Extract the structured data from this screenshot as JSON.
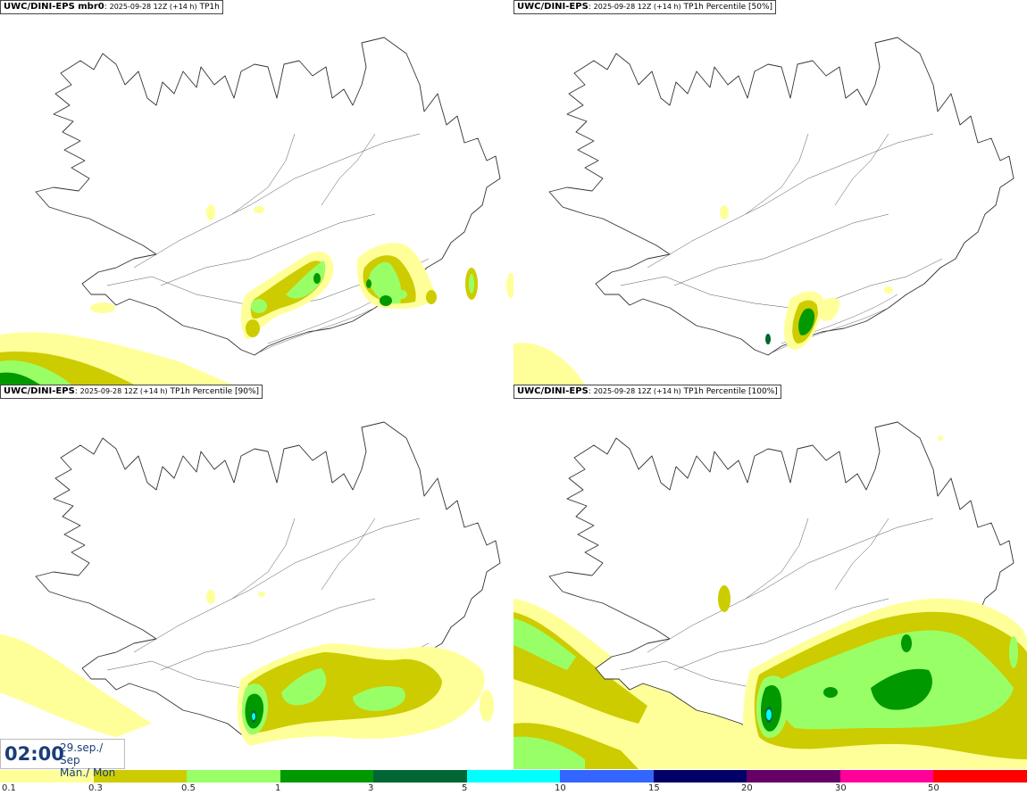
{
  "panels": [
    {
      "model": "UWC/DINI-EPS mbr0",
      "run": "2025-09-28 12Z (+14 h)",
      "field": "TP1h"
    },
    {
      "model": "UWC/DINI-EPS",
      "run": "2025-09-28 12Z (+14 h)",
      "field": "TP1h Percentile [50%]"
    },
    {
      "model": "UWC/DINI-EPS",
      "run": "2025-09-28 12Z (+14 h)",
      "field": "TP1h Percentile [90%]"
    },
    {
      "model": "UWC/DINI-EPS",
      "run": "2025-09-28 12Z (+14 h)",
      "field": "TP1h Percentile [100%]"
    }
  ],
  "valid_time": {
    "time": "02:00",
    "date_line1": "29.sep./ Sep",
    "date_line2": "Mán./ Mon"
  },
  "colorbar": {
    "labels": [
      "0.1",
      "0.3",
      "0.5",
      "1",
      "3",
      "5",
      "10",
      "15",
      "20",
      "30",
      "50"
    ],
    "colors": [
      "#ffff99",
      "#cccc00",
      "#99ff66",
      "#009900",
      "#006633",
      "#00ffff",
      "#3366ff",
      "#000066",
      "#660066",
      "#ff0099",
      "#ff0000"
    ]
  },
  "icons": {
    "map": "iceland-outline-map",
    "precip": "precipitation-contours"
  }
}
